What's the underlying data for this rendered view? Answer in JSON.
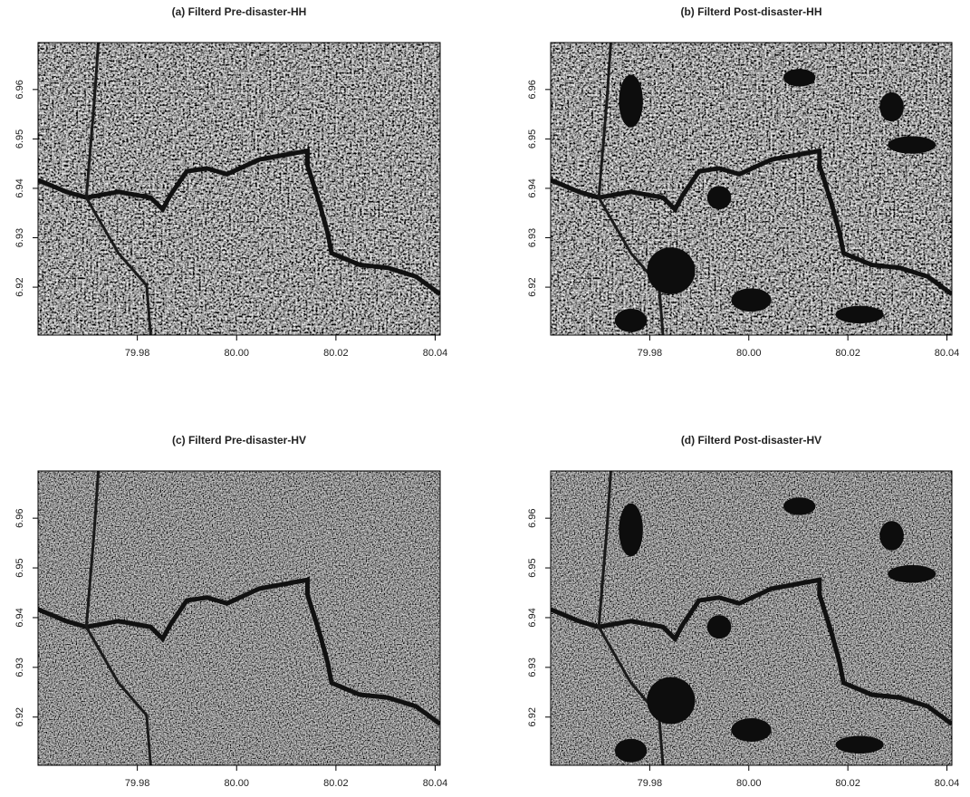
{
  "chart_data": [
    {
      "type": "raster",
      "title": "(a) Filterd Pre-disaster-HH",
      "xlim": [
        79.96,
        80.041
      ],
      "ylim": [
        6.9103,
        6.9695
      ],
      "xticks": [
        79.98,
        {
          "value": 80,
          "label": "80.00"
        },
        80.02,
        80.04
      ],
      "yticks": [
        6.92,
        6.93,
        6.94,
        6.95,
        6.96
      ]
    },
    {
      "type": "raster",
      "title": "(b) Filterd Post-disaster-HH",
      "xlim": [
        79.96,
        80.041
      ],
      "ylim": [
        6.9103,
        6.9695
      ],
      "xticks": [
        79.98,
        {
          "value": 80,
          "label": "80.00"
        },
        80.02,
        80.04
      ],
      "yticks": [
        6.92,
        6.93,
        6.94,
        6.95,
        6.96
      ]
    },
    {
      "type": "raster",
      "title": "(c) Filterd Pre-disaster-HV",
      "xlim": [
        79.96,
        80.041
      ],
      "ylim": [
        6.9103,
        6.9695
      ],
      "xticks": [
        79.98,
        {
          "value": 80,
          "label": "80.00"
        },
        80.02,
        80.04
      ],
      "yticks": [
        6.92,
        6.93,
        6.94,
        6.95,
        6.96
      ]
    },
    {
      "type": "raster",
      "title": "(d) Filterd Post-disaster-HV",
      "xlim": [
        79.96,
        80.041
      ],
      "ylim": [
        6.9103,
        6.9695
      ],
      "xticks": [
        79.98,
        {
          "value": 80,
          "label": "80.00"
        },
        80.02,
        80.04
      ],
      "yticks": [
        6.92,
        6.93,
        6.94,
        6.95,
        6.96
      ]
    }
  ]
}
